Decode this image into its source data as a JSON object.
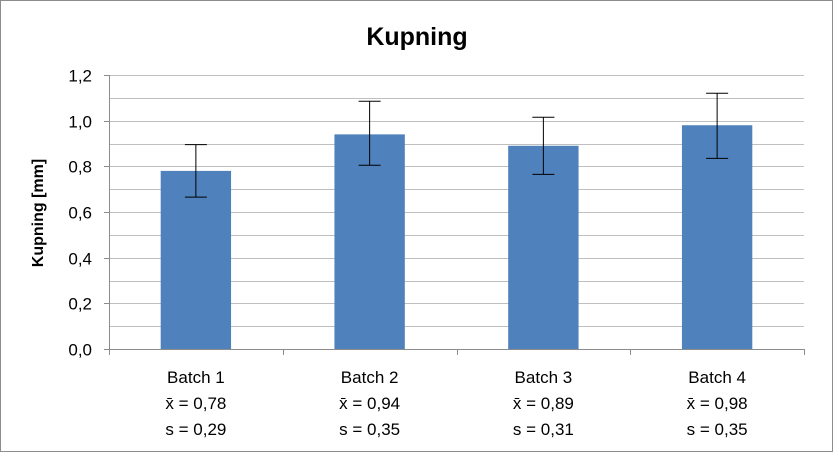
{
  "chart_data": {
    "type": "bar",
    "title": "Kupning",
    "xlabel": "",
    "ylabel": "Kupning [mm]",
    "ylim": [
      0,
      1.2
    ],
    "yticks": [
      0,
      0.2,
      0.4,
      0.6,
      0.8,
      1.0,
      1.2
    ],
    "ytick_labels": [
      "0,0",
      "0,2",
      "0,4",
      "0,6",
      "0,8",
      "1,0",
      "1,2"
    ],
    "grid": true,
    "legend": "none",
    "bar_color": "#4f81bd",
    "categories": [
      "Batch 1",
      "Batch 2",
      "Batch 3",
      "Batch 4"
    ],
    "category_lines": [
      [
        "Batch 1",
        "x̄ = 0,78",
        "s = 0,29"
      ],
      [
        "Batch 2",
        "x̄ = 0,94",
        "s = 0,35"
      ],
      [
        "Batch 3",
        "x̄ = 0,89",
        "s = 0,31"
      ],
      [
        "Batch 4",
        "x̄ = 0,98",
        "s = 0,35"
      ]
    ],
    "values": [
      0.78,
      0.94,
      0.89,
      0.98
    ],
    "error_low": [
      0.665,
      0.805,
      0.765,
      0.835
    ],
    "error_high": [
      0.895,
      1.085,
      1.015,
      1.12
    ]
  }
}
